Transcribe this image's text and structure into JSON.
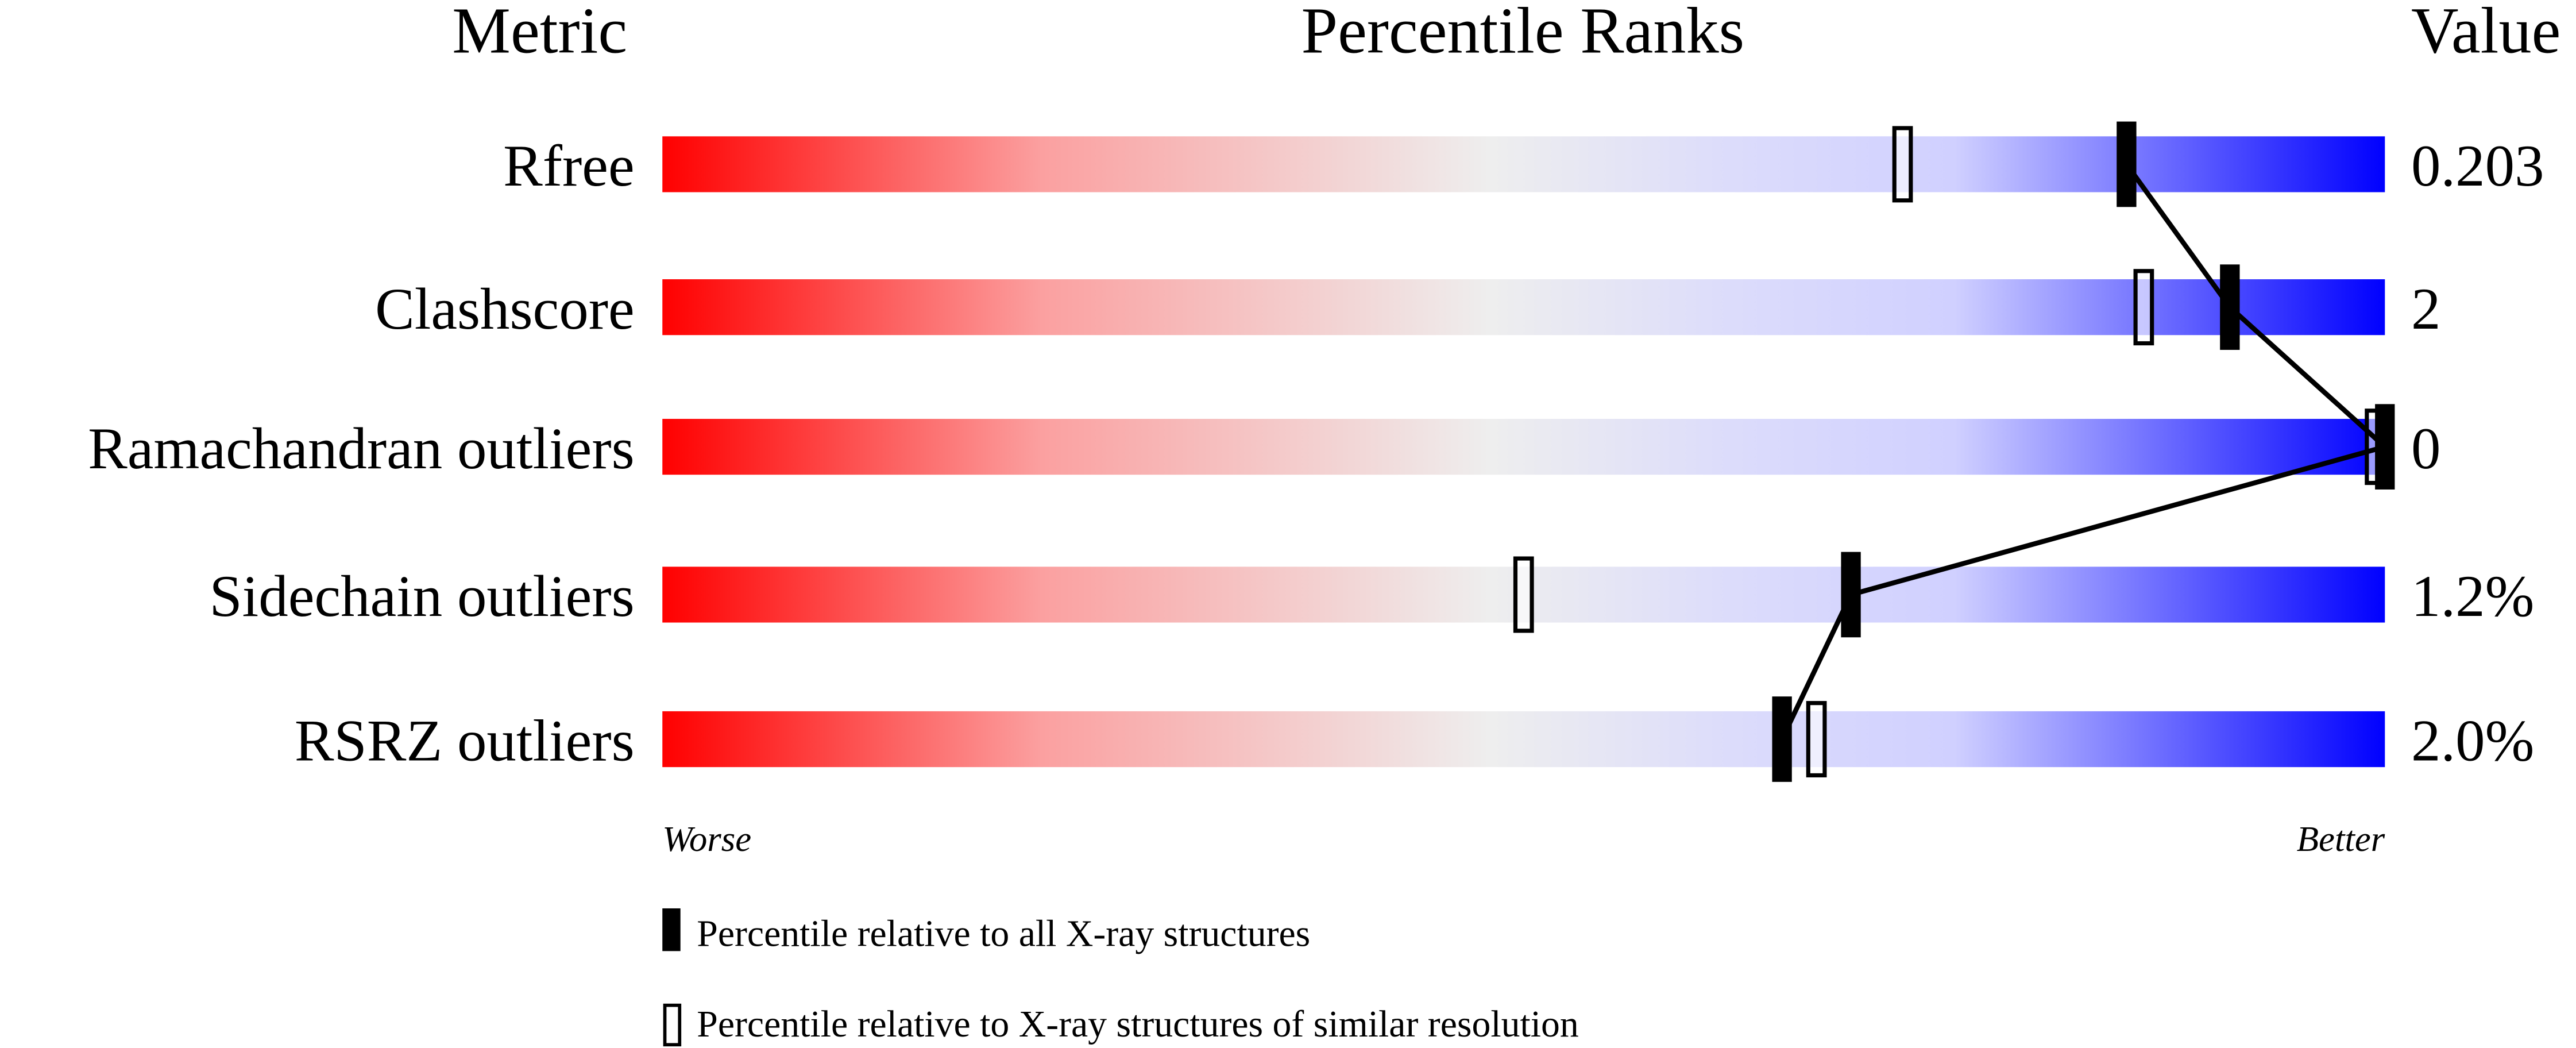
{
  "chart_data": {
    "type": "percentile-slider",
    "headers": {
      "metric": "Metric",
      "ranks": "Percentile Ranks",
      "value": "Value"
    },
    "axis": {
      "left_label": "Worse",
      "right_label": "Better",
      "range": [
        0,
        100
      ]
    },
    "rows": [
      {
        "metric": "Rfree",
        "value": "0.203",
        "percentile_all": 85,
        "percentile_similar": 72
      },
      {
        "metric": "Clashscore",
        "value": "2",
        "percentile_all": 91,
        "percentile_similar": 86
      },
      {
        "metric": "Ramachandran outliers",
        "value": "0",
        "percentile_all": 100,
        "percentile_similar": 100
      },
      {
        "metric": "Sidechain outliers",
        "value": "1.2%",
        "percentile_all": 69,
        "percentile_similar": 50
      },
      {
        "metric": "RSRZ outliers",
        "value": "2.0%",
        "percentile_all": 65,
        "percentile_similar": 67
      }
    ],
    "legend": [
      {
        "marker": "filled",
        "label": "Percentile relative to all X-ray structures"
      },
      {
        "marker": "open",
        "label": "Percentile relative to X-ray structures of similar resolution"
      }
    ],
    "colors": {
      "worse": "#ff0000",
      "middle": "#eeeeee",
      "better": "#0000ff",
      "marker": "#000000"
    }
  }
}
